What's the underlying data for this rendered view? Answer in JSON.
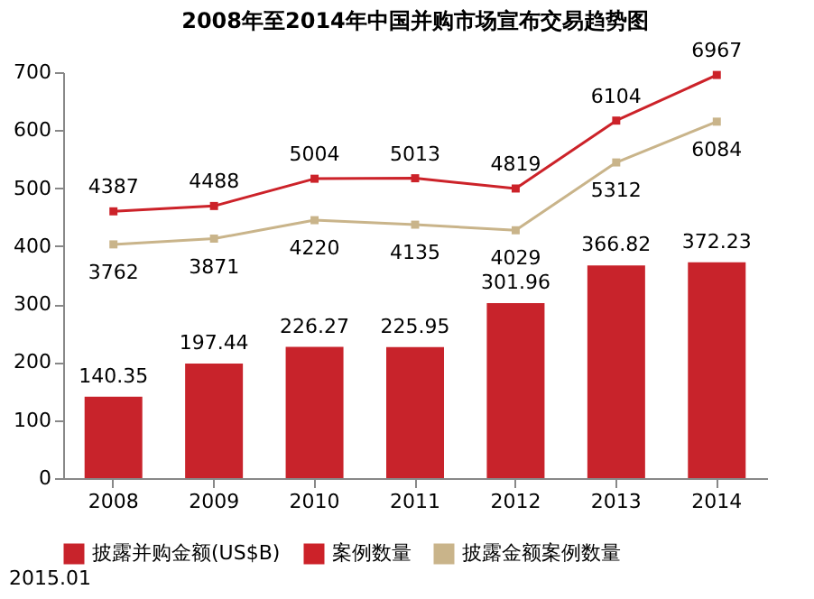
{
  "chart_data": {
    "type": "bar",
    "title": "2008年至2014年中国并购市场宣布交易趋势图",
    "categories": [
      "2008",
      "2009",
      "2010",
      "2011",
      "2012",
      "2013",
      "2014"
    ],
    "series": [
      {
        "name": "披露并购金额(US$B)",
        "color": "#c8232b",
        "values": [
          140.35,
          197.44,
          226.27,
          225.95,
          301.96,
          366.82,
          372.23
        ]
      },
      {
        "name": "案例数量",
        "type": "line",
        "axis": "y2",
        "color": "#cc2229",
        "values": [
          4387,
          4488,
          5004,
          5013,
          4819,
          6104,
          6967
        ]
      },
      {
        "name": "披露金额案例数量",
        "type": "line",
        "axis": "y2",
        "color": "#c9b48a",
        "values": [
          3762,
          3871,
          4220,
          4135,
          4029,
          5312,
          6084
        ]
      }
    ],
    "ylim": [
      0,
      700
    ],
    "yticks": [
      0,
      100,
      200,
      300,
      400,
      500,
      600,
      700
    ],
    "y2lim": [
      -660,
      7020
    ],
    "data_labels": true,
    "marker": "square",
    "legend": "bottom",
    "grid": false,
    "annotations": [
      "2015.01"
    ]
  }
}
